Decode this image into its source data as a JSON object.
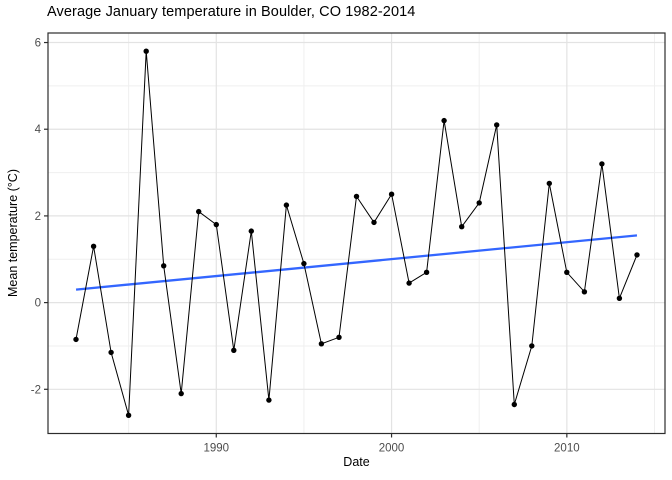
{
  "page": {
    "title": "Average January temperature in Boulder, CO 1982-2014"
  },
  "chart_data": {
    "type": "line",
    "title": "Average January temperature in Boulder, CO 1982-2014",
    "xlabel": "Date",
    "ylabel": "Mean temperature (°C)",
    "x": [
      1982,
      1983,
      1984,
      1985,
      1986,
      1987,
      1988,
      1989,
      1990,
      1991,
      1992,
      1993,
      1994,
      1995,
      1996,
      1997,
      1998,
      1999,
      2000,
      2001,
      2002,
      2003,
      2004,
      2005,
      2006,
      2007,
      2008,
      2009,
      2010,
      2011,
      2012,
      2013,
      2014
    ],
    "series": [
      {
        "name": "mean_january_temperature",
        "style": "line_with_points",
        "color": "#000000",
        "values": [
          -0.85,
          1.3,
          -1.15,
          -2.6,
          5.8,
          0.85,
          -2.1,
          2.1,
          1.8,
          -1.1,
          1.65,
          -2.25,
          2.25,
          0.9,
          -0.95,
          -0.8,
          2.45,
          1.85,
          2.5,
          0.45,
          0.7,
          4.2,
          1.75,
          2.3,
          4.1,
          -2.35,
          -1.0,
          2.75,
          0.7,
          0.25,
          3.2,
          0.1,
          1.1
        ]
      },
      {
        "name": "linear_trend",
        "style": "line",
        "color": "#3366FF",
        "x": [
          1982,
          2014
        ],
        "values": [
          0.3,
          1.55
        ]
      }
    ],
    "xlim": [
      1980.4,
      2015.6
    ],
    "ylim": [
      -3.02,
      6.22
    ],
    "x_ticks": [
      1990,
      2000,
      2010
    ],
    "y_ticks": [
      -2,
      0,
      2,
      4,
      6
    ],
    "x_minor_gridlines": [
      1985,
      1995,
      2005,
      2015
    ],
    "y_minor_gridlines": [
      -1,
      1,
      3,
      5
    ],
    "grid": true,
    "legend": "none",
    "background": "#ffffff",
    "panel_border_color": "#2d2d2d",
    "major_grid_color": "#e3e3e3",
    "minor_grid_color": "#efefef",
    "tick_color": "#2d2d2d",
    "tick_label_color": "#4d4d4d"
  }
}
